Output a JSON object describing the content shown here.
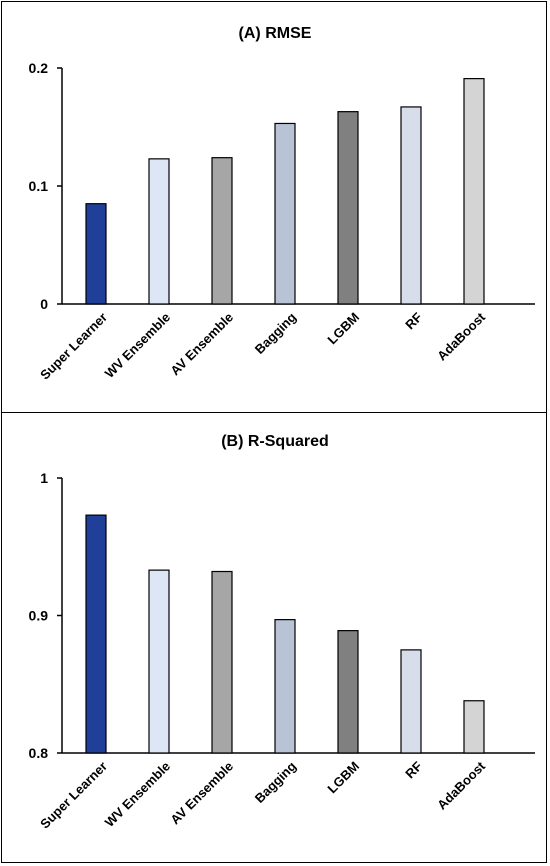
{
  "chart_data": [
    {
      "type": "bar",
      "title": "(A) RMSE",
      "categories": [
        "Super Learner",
        "WV Ensemble",
        "AV Ensemble",
        "Bagging",
        "LGBM",
        "RF",
        "AdaBoost"
      ],
      "values": [
        0.085,
        0.123,
        0.124,
        0.153,
        0.163,
        0.167,
        0.191
      ],
      "ylim": [
        0,
        0.2
      ],
      "yticks": [
        "0",
        "0.1",
        "0.2"
      ],
      "colors": [
        "#1f3f99",
        "#dde6f4",
        "#a6a6a6",
        "#b9c3d6",
        "#808080",
        "#d7ddea",
        "#d4d4d4"
      ],
      "grid": false
    },
    {
      "type": "bar",
      "title": "(B) R-Squared",
      "categories": [
        "Super Learner",
        "WV Ensemble",
        "AV Ensemble",
        "Bagging",
        "LGBM",
        "RF",
        "AdaBoost"
      ],
      "values": [
        0.973,
        0.933,
        0.932,
        0.897,
        0.889,
        0.875,
        0.838
      ],
      "ylim": [
        0.8,
        1
      ],
      "yticks": [
        "0.8",
        "0.9",
        "1"
      ],
      "colors": [
        "#1f3f99",
        "#dde6f4",
        "#a6a6a6",
        "#b9c3d6",
        "#808080",
        "#d7ddea",
        "#d4d4d4"
      ],
      "grid": false
    }
  ]
}
